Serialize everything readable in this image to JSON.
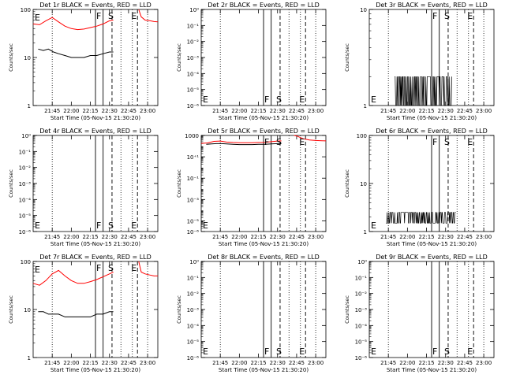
{
  "x_tick_labels": [
    "21:45",
    "22:00",
    "22:15",
    "22:30",
    "22:45",
    "23:00"
  ],
  "x_axis_label": "Start Time (05-Nov-15 21:30:20)",
  "y_axis_label": "Counts/sec",
  "marker_labels": {
    "F": "F",
    "S": "S",
    "E": "E"
  },
  "colors": {
    "events": "#000000",
    "lld": "#ff0000",
    "axes": "#000000"
  },
  "chart_data": [
    {
      "type": "line",
      "title": "Det 1r BLACK = Events, RED = LLD",
      "x_range": [
        "21:30",
        "23:08"
      ],
      "y_scale": "log",
      "ylim": [
        1,
        100
      ],
      "y_tick_labels": [
        "1",
        "10",
        "100"
      ],
      "series": [
        {
          "color": "red",
          "x": [
            "21:30",
            "21:35",
            "21:40",
            "21:45",
            "21:50",
            "21:55",
            "22:00",
            "22:05",
            "22:10",
            "22:15",
            "22:20",
            "22:25",
            "22:30",
            "22:33"
          ],
          "y": [
            50,
            48,
            58,
            68,
            55,
            45,
            40,
            38,
            39,
            42,
            45,
            50,
            58,
            60
          ]
        },
        {
          "color": "black",
          "x": [
            "21:34",
            "21:38",
            "21:42",
            "21:46",
            "21:50",
            "21:55",
            "22:00",
            "22:05",
            "22:10",
            "22:15",
            "22:20",
            "22:25",
            "22:30",
            "22:33"
          ],
          "y": [
            15,
            14,
            15,
            13,
            12,
            11,
            10,
            10,
            10,
            11,
            11,
            12,
            13,
            13
          ]
        },
        {
          "color": "red",
          "x": [
            "22:53",
            "22:55",
            "22:58",
            "23:02",
            "23:05",
            "23:08"
          ],
          "y": [
            100,
            70,
            60,
            58,
            56,
            55
          ]
        }
      ],
      "markers": {
        "E_text_at": "21:31",
        "F_line": "22:19",
        "F_text_at": "22:19",
        "solid_2": "22:25",
        "S_dash": "22:32",
        "S_text_at": "22:33",
        "E_dash": "22:52",
        "E_text_at2": "22:37",
        "dotted": [
          "21:45",
          "22:39",
          "22:48",
          "23:00"
        ]
      }
    },
    {
      "type": "line",
      "title": "Det 2r BLACK = Events, RED = LLD",
      "x_range": [
        "21:30",
        "23:08"
      ],
      "y_scale": "log",
      "ylim": [
        1e-06,
        1
      ],
      "y_tick_labels": [
        "10⁰",
        "10⁻¹",
        "10⁻²",
        "10⁻³",
        "10⁻⁴",
        "10⁻⁵",
        "10⁻⁶"
      ],
      "y_tick_values": [
        1,
        0.1,
        0.01,
        0.001,
        0.0001,
        1e-05,
        1e-06
      ],
      "series": [],
      "markers": {
        "F_line": "22:19",
        "solid_2": "22:25",
        "S_dash": "22:32",
        "E_dash": "22:52",
        "dotted": [
          "21:45",
          "22:39",
          "22:48",
          "23:00"
        ]
      }
    },
    {
      "type": "line",
      "title": "Det 3r BLACK = Events, RED = LLD",
      "x_range": [
        "21:30",
        "23:08"
      ],
      "y_scale": "log",
      "ylim": [
        1,
        10
      ],
      "y_tick_labels": [
        "1",
        "10"
      ],
      "series": [
        {
          "color": "black",
          "style": "noise",
          "x_range": [
            "21:50",
            "22:35"
          ],
          "y_level": 2,
          "y_base": 1
        }
      ],
      "markers": {
        "F_line": "22:19",
        "solid_2": "22:25",
        "S_dash": "22:32",
        "E_dash": "22:52",
        "dotted": [
          "21:45",
          "22:39",
          "22:48",
          "23:00"
        ]
      }
    },
    {
      "type": "line",
      "title": "Det 4r BLACK = Events, RED = LLD",
      "x_range": [
        "21:30",
        "23:08"
      ],
      "y_scale": "log",
      "ylim": [
        1e-06,
        1
      ],
      "y_tick_labels": [
        "10⁰",
        "10⁻¹",
        "10⁻²",
        "10⁻³",
        "10⁻⁴",
        "10⁻⁵",
        "10⁻⁶"
      ],
      "y_tick_values": [
        1,
        0.1,
        0.01,
        0.001,
        0.0001,
        1e-05,
        1e-06
      ],
      "series": [],
      "markers": {
        "F_line": "22:19",
        "solid_2": "22:25",
        "S_dash": "22:32",
        "E_dash": "22:52",
        "dotted": [
          "21:45",
          "22:39",
          "22:48",
          "23:00"
        ]
      }
    },
    {
      "type": "line",
      "title": "Det 5r BLACK = Events, RED = LLD",
      "x_range": [
        "21:30",
        "23:08"
      ],
      "y_scale": "log",
      "ylim": [
        1e-06,
        1000
      ],
      "y_tick_labels": [
        "1000",
        "10⁺¹",
        "10⁻¹",
        "10⁻³",
        "10⁻⁵",
        "10⁻⁶"
      ],
      "y_tick_values": [
        1000,
        10,
        0.1,
        0.001,
        1e-05,
        1e-06
      ],
      "series": [
        {
          "color": "red",
          "x": [
            "21:30",
            "21:35",
            "21:40",
            "21:45",
            "21:50",
            "21:55",
            "22:00",
            "22:05",
            "22:10",
            "22:15",
            "22:20",
            "22:25",
            "22:30",
            "22:33"
          ],
          "y": [
            180,
            200,
            280,
            300,
            240,
            220,
            210,
            205,
            210,
            220,
            230,
            260,
            300,
            310
          ]
        },
        {
          "color": "black",
          "x": [
            "21:34",
            "21:38",
            "21:42",
            "21:46",
            "21:50",
            "21:55",
            "22:00",
            "22:05",
            "22:10",
            "22:15",
            "22:20",
            "22:25",
            "22:30",
            "22:33"
          ],
          "y": [
            150,
            160,
            170,
            170,
            160,
            150,
            140,
            140,
            140,
            150,
            150,
            160,
            170,
            180
          ]
        },
        {
          "color": "red",
          "x": [
            "22:43",
            "22:45",
            "22:50",
            "22:55",
            "23:00",
            "23:05",
            "23:08"
          ],
          "y": [
            1000,
            900,
            500,
            380,
            340,
            320,
            310
          ]
        }
      ],
      "markers": {
        "F_line": "22:19",
        "solid_2": "22:25",
        "S_dash": "22:32",
        "E_dash": "22:52",
        "dotted": [
          "21:45",
          "22:39",
          "22:48",
          "23:00"
        ]
      }
    },
    {
      "type": "line",
      "title": "Det 6r BLACK = Events, RED = LLD",
      "x_range": [
        "21:30",
        "23:08"
      ],
      "y_scale": "log",
      "ylim": [
        1,
        100
      ],
      "y_tick_labels": [
        "1",
        "10",
        "100"
      ],
      "series": [
        {
          "color": "black",
          "style": "noise",
          "x_range": [
            "21:43",
            "22:38"
          ],
          "y_level": 2.5,
          "y_base": 1.5
        }
      ],
      "markers": {
        "F_line": "22:19",
        "solid_2": "22:25",
        "S_dash": "22:32",
        "E_dash": "22:52",
        "dotted": [
          "21:45",
          "22:39",
          "22:48",
          "23:00"
        ]
      }
    },
    {
      "type": "line",
      "title": "Det 7r BLACK = Events, RED = LLD",
      "x_range": [
        "21:30",
        "23:08"
      ],
      "y_scale": "log",
      "ylim": [
        1,
        100
      ],
      "y_tick_labels": [
        "1",
        "10",
        "100"
      ],
      "series": [
        {
          "color": "red",
          "x": [
            "21:30",
            "21:35",
            "21:40",
            "21:45",
            "21:50",
            "21:55",
            "22:00",
            "22:05",
            "22:10",
            "22:15",
            "22:20",
            "22:25",
            "22:30",
            "22:33"
          ],
          "y": [
            35,
            32,
            40,
            55,
            65,
            50,
            40,
            35,
            35,
            38,
            42,
            48,
            55,
            60
          ]
        },
        {
          "color": "black",
          "x": [
            "21:34",
            "21:38",
            "21:42",
            "21:46",
            "21:50",
            "21:55",
            "22:00",
            "22:05",
            "22:10",
            "22:15",
            "22:20",
            "22:25",
            "22:30",
            "22:33"
          ],
          "y": [
            9,
            9,
            8,
            8,
            8,
            7,
            7,
            7,
            7,
            7,
            8,
            8,
            9,
            9
          ]
        },
        {
          "color": "red",
          "x": [
            "22:53",
            "22:55",
            "22:58",
            "23:02",
            "23:05",
            "23:08"
          ],
          "y": [
            100,
            60,
            55,
            52,
            50,
            50
          ]
        }
      ],
      "markers": {
        "F_line": "22:19",
        "solid_2": "22:25",
        "S_dash": "22:32",
        "E_dash": "22:52",
        "dotted": [
          "21:45",
          "22:39",
          "22:48",
          "23:00"
        ]
      }
    },
    {
      "type": "line",
      "title": "Det 8r BLACK = Events, RED = LLD",
      "x_range": [
        "21:30",
        "23:08"
      ],
      "y_scale": "log",
      "ylim": [
        1e-06,
        1
      ],
      "y_tick_labels": [
        "10⁰",
        "10⁻¹",
        "10⁻²",
        "10⁻³",
        "10⁻⁴",
        "10⁻⁵",
        "10⁻⁶"
      ],
      "y_tick_values": [
        1,
        0.1,
        0.01,
        0.001,
        0.0001,
        1e-05,
        1e-06
      ],
      "series": [],
      "markers": {
        "F_line": "22:19",
        "solid_2": "22:25",
        "S_dash": "22:32",
        "E_dash": "22:52",
        "dotted": [
          "21:45",
          "22:39",
          "22:48",
          "23:00"
        ]
      }
    },
    {
      "type": "line",
      "title": "Det 9r BLACK = Events, RED = LLD",
      "x_range": [
        "21:30",
        "23:08"
      ],
      "y_scale": "log",
      "ylim": [
        1e-06,
        1
      ],
      "y_tick_labels": [
        "10⁰",
        "10⁻¹",
        "10⁻²",
        "10⁻³",
        "10⁻⁴",
        "10⁻⁵",
        "10⁻⁶"
      ],
      "y_tick_values": [
        1,
        0.1,
        0.01,
        0.001,
        0.0001,
        1e-05,
        1e-06
      ],
      "series": [],
      "markers": {
        "F_line": "22:19",
        "solid_2": "22:25",
        "S_dash": "22:32",
        "E_dash": "22:52",
        "dotted": [
          "21:45",
          "22:39",
          "22:48",
          "23:00"
        ]
      }
    }
  ]
}
